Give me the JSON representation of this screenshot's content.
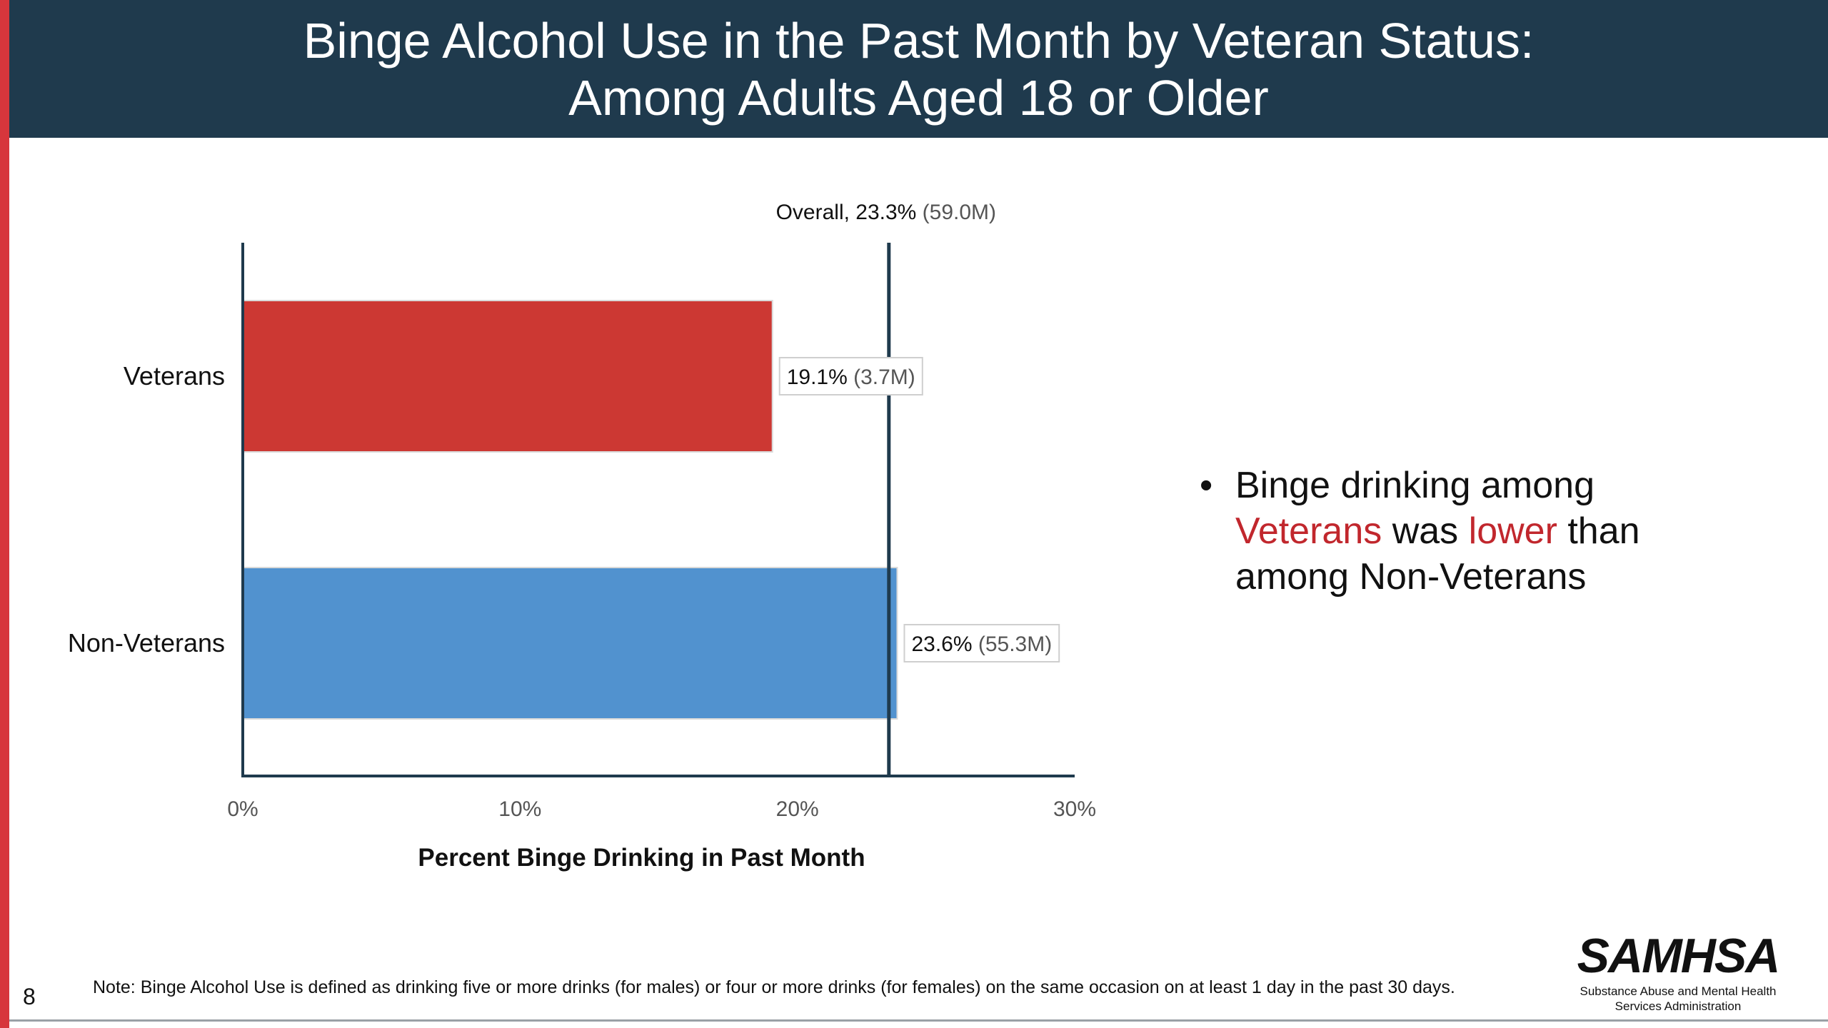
{
  "slide": {
    "title": "Binge Alcohol Use in the Past Month by Veteran Status:\nAmong Adults Aged 18 or Older",
    "page_number": "8",
    "footnote": "Note: Binge Alcohol Use is defined as drinking five or more drinks (for males) or four or more drinks (for females) on the same occasion on at least 1 day in the past 30 days."
  },
  "callout": {
    "bullet": "•",
    "part1": "Binge drinking among ",
    "highlight1": "Veterans",
    "part2": " was ",
    "highlight2": "lower",
    "part3": " than among Non-Veterans"
  },
  "logo": {
    "word": "SAMHSA",
    "subtitle": "Substance Abuse and Mental Health\nServices Administration"
  },
  "colors": {
    "title_bar": "#1f3a4d",
    "accent": "#d7363c",
    "veterans_bar": "#cc3833",
    "nonveterans_bar": "#5192cf",
    "axis": "#1f3a4d",
    "highlight_text": "#c1272d"
  },
  "chart_data": {
    "type": "bar",
    "orientation": "horizontal",
    "categories": [
      "Veterans",
      "Non-Veterans"
    ],
    "values": [
      19.1,
      23.6
    ],
    "value_labels": [
      "19.1%",
      "23.6%"
    ],
    "count_labels": [
      "(3.7M)",
      "(55.3M)"
    ],
    "xlabel": "Percent Binge Drinking in Past Month",
    "xlim": [
      0,
      30
    ],
    "xticks": [
      0,
      10,
      20,
      30
    ],
    "xtick_labels": [
      "0%",
      "10%",
      "20%",
      "30%"
    ],
    "reference_line": {
      "value": 23.3,
      "label_bold": "Overall, 23.3%",
      "label_extra": "(59.0M)"
    },
    "grid": false,
    "legend": "none"
  }
}
